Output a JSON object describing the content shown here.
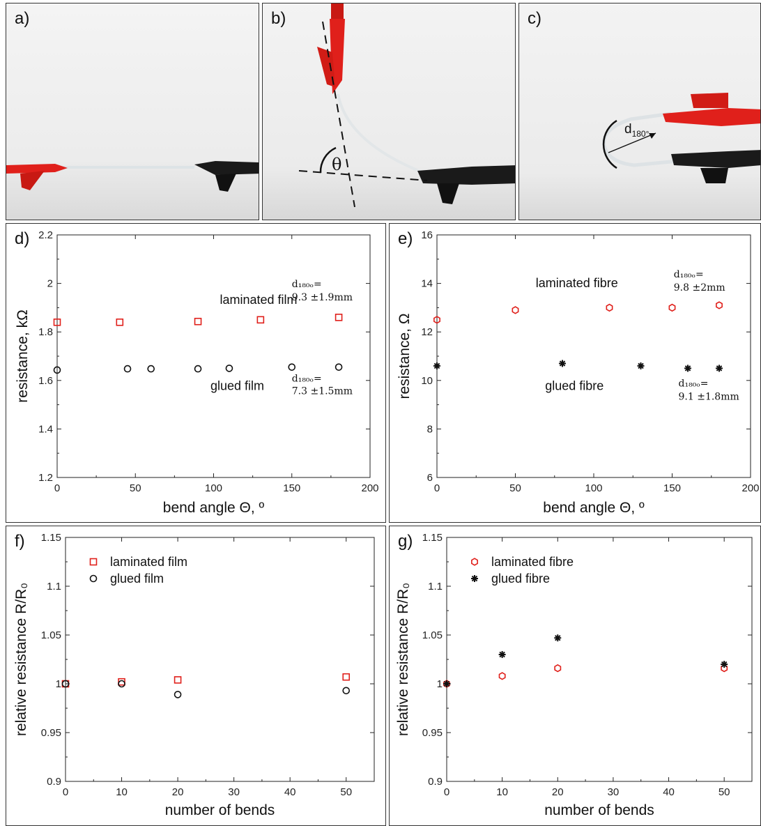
{
  "panel_labels": {
    "a": "a)",
    "b": "b)",
    "c": "c)",
    "d": "d)",
    "e": "e)",
    "f": "f)",
    "g": "g)"
  },
  "photos": {
    "b": {
      "angle_symbol": "θ"
    },
    "c": {
      "d_main": "d",
      "d_sub": "180°"
    }
  },
  "colors": {
    "laminated": "#e0201b",
    "glued": "#111111",
    "clip_red": "#e0201b",
    "clip_black": "#1a1a1a"
  },
  "chart_data": [
    {
      "id": "d",
      "type": "scatter",
      "xlabel": "bend angle Θ, º",
      "ylabel": "resistance, kΩ",
      "xlim": [
        0,
        200
      ],
      "ylim": [
        1.2,
        2.2
      ],
      "xticks": [
        "0",
        "50",
        "100",
        "150",
        "200"
      ],
      "yticks": [
        "1.2",
        "1.4",
        "1.6",
        "1.8",
        "2",
        "2.2"
      ],
      "grid": false,
      "series": [
        {
          "marker": "square",
          "color": "#e0201b",
          "x": [
            0,
            40,
            90,
            130,
            180
          ],
          "y": [
            1.84,
            1.84,
            1.843,
            1.85,
            1.86
          ]
        },
        {
          "marker": "circle",
          "color": "#111111",
          "x": [
            0,
            45,
            60,
            90,
            110,
            150,
            180
          ],
          "y": [
            1.643,
            1.648,
            1.648,
            1.648,
            1.65,
            1.655,
            1.655
          ]
        }
      ],
      "annotations": [
        {
          "text": "laminated film",
          "kind": "label",
          "x": 104,
          "y": 1.915
        },
        {
          "text": "glued film",
          "kind": "label",
          "x": 98,
          "y": 1.56
        },
        {
          "text": "d₁₈₀ₒ=",
          "kind": "note",
          "x": 150,
          "y": 1.985
        },
        {
          "text": "9.3 ±1.9mm",
          "kind": "note",
          "x": 150,
          "y": 1.93
        },
        {
          "text": "d₁₈₀ₒ=",
          "kind": "note",
          "x": 150,
          "y": 1.595
        },
        {
          "text": "7.3 ±1.5mm",
          "kind": "note",
          "x": 150,
          "y": 1.543
        }
      ]
    },
    {
      "id": "e",
      "type": "scatter",
      "xlabel": "bend angle Θ, º",
      "ylabel": "resistance, Ω",
      "xlim": [
        0,
        200
      ],
      "ylim": [
        6,
        16
      ],
      "xticks": [
        "0",
        "50",
        "100",
        "150",
        "200"
      ],
      "yticks": [
        "6",
        "8",
        "10",
        "12",
        "14",
        "16"
      ],
      "grid": false,
      "series": [
        {
          "marker": "hexagon",
          "color": "#e0201b",
          "x": [
            0,
            50,
            110,
            150,
            180
          ],
          "y": [
            12.5,
            12.9,
            13.0,
            13.0,
            13.1
          ]
        },
        {
          "marker": "asterisk",
          "color": "#111111",
          "x": [
            0,
            80,
            130,
            160,
            180
          ],
          "y": [
            10.6,
            10.7,
            10.6,
            10.5,
            10.5
          ]
        }
      ],
      "annotations": [
        {
          "text": "laminated fibre",
          "kind": "label",
          "x": 63,
          "y": 13.85
        },
        {
          "text": "glued fibre",
          "kind": "label",
          "x": 69,
          "y": 9.6
        },
        {
          "text": "d₁₈₀ₒ=",
          "kind": "note",
          "x": 151,
          "y": 14.25
        },
        {
          "text": "9.8 ±2mm",
          "kind": "note",
          "x": 151,
          "y": 13.7
        },
        {
          "text": "d₁₈₀ₒ=",
          "kind": "note",
          "x": 154,
          "y": 9.75
        },
        {
          "text": "9.1 ±1.8mm",
          "kind": "note",
          "x": 154,
          "y": 9.2
        }
      ]
    },
    {
      "id": "f",
      "type": "scatter",
      "xlabel": "number of bends",
      "ylabel": "relative resistance R/R₀",
      "xlim": [
        0,
        55
      ],
      "ylim": [
        0.9,
        1.15
      ],
      "xticks": [
        "0",
        "10",
        "20",
        "30",
        "40",
        "50"
      ],
      "yticks": [
        "0.9",
        "0.95",
        "1",
        "1.05",
        "1.1",
        "1.15"
      ],
      "grid": false,
      "legend": "top-left",
      "series": [
        {
          "name": "laminated film",
          "marker": "square",
          "color": "#e0201b",
          "x": [
            0,
            10,
            20,
            50
          ],
          "y": [
            1.0,
            1.002,
            1.004,
            1.007
          ]
        },
        {
          "name": "glued film",
          "marker": "circle",
          "color": "#111111",
          "x": [
            0,
            10,
            20,
            50
          ],
          "y": [
            1.0,
            1.0,
            0.989,
            0.993
          ]
        }
      ]
    },
    {
      "id": "g",
      "type": "scatter",
      "xlabel": "number of bends",
      "ylabel": "relative resistance R/R₀",
      "xlim": [
        0,
        55
      ],
      "ylim": [
        0.9,
        1.15
      ],
      "xticks": [
        "0",
        "10",
        "20",
        "30",
        "40",
        "50"
      ],
      "yticks": [
        "0.9",
        "0.95",
        "1",
        "1.05",
        "1.1",
        "1.15"
      ],
      "grid": false,
      "legend": "top-left",
      "series": [
        {
          "name": "laminated fibre",
          "marker": "hexagon",
          "color": "#e0201b",
          "x": [
            0,
            10,
            20,
            50
          ],
          "y": [
            1.0,
            1.008,
            1.016,
            1.016
          ]
        },
        {
          "name": "glued fibre",
          "marker": "asterisk",
          "color": "#111111",
          "x": [
            0,
            10,
            20,
            50
          ],
          "y": [
            1.0,
            1.03,
            1.047,
            1.02
          ]
        }
      ]
    }
  ]
}
